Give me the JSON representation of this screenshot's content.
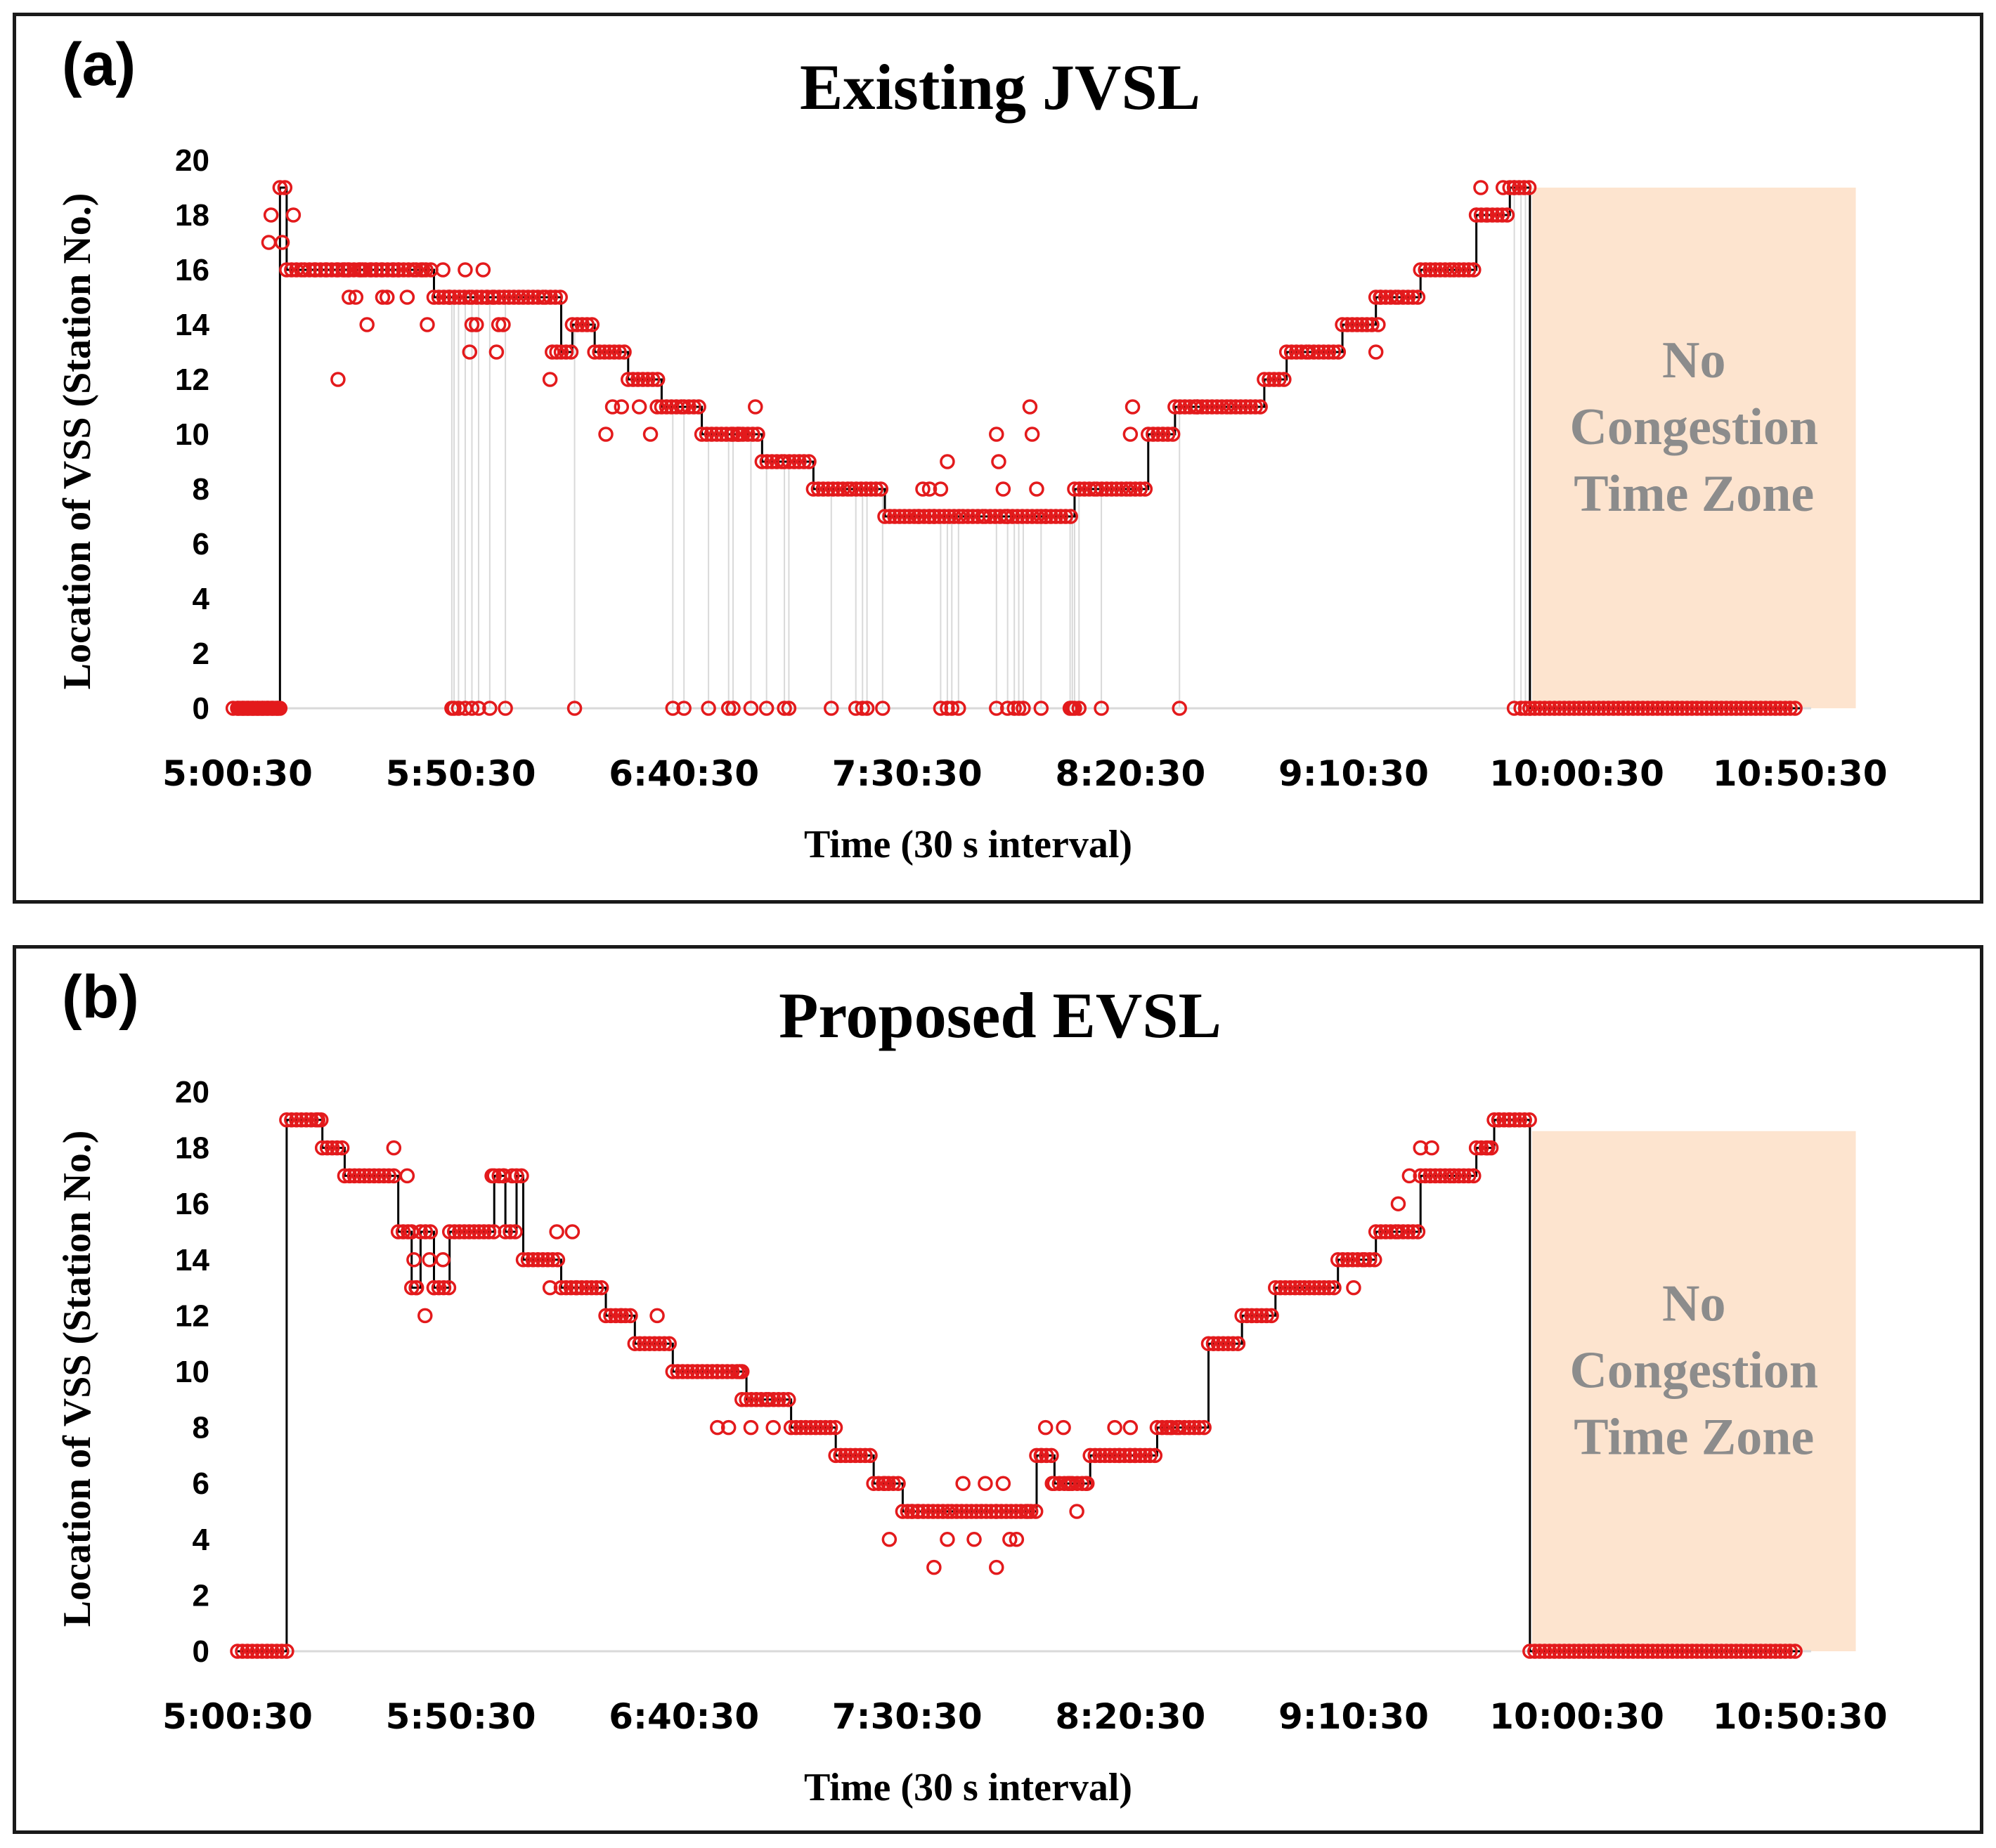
{
  "chart_data": [
    {
      "panel_label": "(a)",
      "title": "Existing JVSL",
      "type": "scatter",
      "xlabel": "Time (30 s interval)",
      "ylabel": "Location of VSS (Station No.)",
      "x_tick_labels": [
        "5:00:30",
        "5:50:30",
        "6:40:30",
        "7:30:30",
        "8:20:30",
        "9:10:30",
        "10:00:30",
        "10:50:30"
      ],
      "x_ticks": [
        0,
        100,
        200,
        300,
        400,
        500,
        600,
        700
      ],
      "xlim": [
        0,
        705
      ],
      "y_ticks": [
        0,
        2,
        4,
        6,
        8,
        10,
        12,
        14,
        16,
        18,
        20
      ],
      "ylim": [
        0,
        20
      ],
      "grid": false,
      "shaded_region": {
        "x": [
          580,
          725
        ],
        "y": [
          0,
          19
        ],
        "text": [
          "No",
          "Congestion",
          "Time Zone"
        ],
        "color": "#fde4cf"
      },
      "series_color": "#e31a1c",
      "line_color": "#000000",
      "drop_line_color": "#d9d9d9",
      "segments": [
        [
          -3,
          19,
          0
        ],
        [
          19,
          22,
          19
        ],
        [
          22,
          30,
          16
        ],
        [
          30,
          35,
          16
        ],
        [
          35,
          40,
          16
        ],
        [
          40,
          45,
          16
        ],
        [
          45,
          50,
          16
        ],
        [
          50,
          55,
          16
        ],
        [
          55,
          60,
          16
        ],
        [
          60,
          65,
          16
        ],
        [
          65,
          70,
          16
        ],
        [
          70,
          80,
          16
        ],
        [
          80,
          88,
          16
        ],
        [
          88,
          95,
          15
        ],
        [
          95,
          105,
          15
        ],
        [
          105,
          112,
          15
        ],
        [
          112,
          115,
          15
        ],
        [
          115,
          128,
          15
        ],
        [
          128,
          138,
          15
        ],
        [
          138,
          145,
          15
        ],
        [
          145,
          150,
          13
        ],
        [
          150,
          160,
          14
        ],
        [
          160,
          175,
          13
        ],
        [
          175,
          190,
          12
        ],
        [
          190,
          200,
          11
        ],
        [
          200,
          208,
          11
        ],
        [
          208,
          222,
          10
        ],
        [
          222,
          235,
          10
        ],
        [
          235,
          245,
          9
        ],
        [
          245,
          258,
          9
        ],
        [
          258,
          275,
          8
        ],
        [
          275,
          290,
          8
        ],
        [
          290,
          310,
          7
        ],
        [
          310,
          325,
          7
        ],
        [
          325,
          335,
          7
        ],
        [
          335,
          345,
          7
        ],
        [
          345,
          360,
          7
        ],
        [
          360,
          375,
          7
        ],
        [
          375,
          385,
          8
        ],
        [
          385,
          400,
          8
        ],
        [
          400,
          408,
          8
        ],
        [
          408,
          420,
          10
        ],
        [
          420,
          430,
          11
        ],
        [
          430,
          445,
          11
        ],
        [
          445,
          460,
          11
        ],
        [
          460,
          470,
          12
        ],
        [
          470,
          480,
          13
        ],
        [
          480,
          495,
          13
        ],
        [
          495,
          510,
          14
        ],
        [
          510,
          520,
          15
        ],
        [
          520,
          530,
          15
        ],
        [
          530,
          545,
          16
        ],
        [
          545,
          555,
          16
        ],
        [
          555,
          560,
          18
        ],
        [
          560,
          570,
          18
        ],
        [
          570,
          572,
          19
        ],
        [
          572,
          579,
          19
        ],
        [
          579,
          700,
          0
        ]
      ],
      "annotation_points": [
        [
          14,
          17
        ],
        [
          15,
          18
        ],
        [
          20,
          17
        ],
        [
          25,
          18
        ],
        [
          48,
          16
        ],
        [
          45,
          12
        ],
        [
          50,
          15
        ],
        [
          53,
          15
        ],
        [
          56,
          16
        ],
        [
          58,
          14
        ],
        [
          62,
          16
        ],
        [
          65,
          15
        ],
        [
          67,
          15
        ],
        [
          72,
          16
        ],
        [
          76,
          15
        ],
        [
          83,
          16
        ],
        [
          85,
          14
        ],
        [
          92,
          16
        ],
        [
          95,
          15
        ],
        [
          102,
          16
        ],
        [
          104,
          13
        ],
        [
          105,
          14
        ],
        [
          107,
          14
        ],
        [
          110,
          16
        ],
        [
          116,
          13
        ],
        [
          117,
          14
        ],
        [
          119,
          14
        ],
        [
          140,
          12
        ],
        [
          141,
          13
        ],
        [
          143,
          13
        ],
        [
          165,
          10
        ],
        [
          168,
          11
        ],
        [
          172,
          11
        ],
        [
          180,
          11
        ],
        [
          185,
          10
        ],
        [
          188,
          11
        ],
        [
          224,
          10
        ],
        [
          225,
          10
        ],
        [
          232,
          11
        ],
        [
          305,
          7
        ],
        [
          307,
          8
        ],
        [
          310,
          8
        ],
        [
          312,
          7
        ],
        [
          315,
          8
        ],
        [
          318,
          9
        ],
        [
          340,
          10
        ],
        [
          341,
          9
        ],
        [
          343,
          8
        ],
        [
          345,
          7
        ],
        [
          355,
          11
        ],
        [
          356,
          10
        ],
        [
          358,
          8
        ],
        [
          362,
          7
        ],
        [
          400,
          10
        ],
        [
          401,
          11
        ],
        [
          430,
          11
        ],
        [
          510,
          13
        ],
        [
          511,
          14
        ],
        [
          512,
          15
        ],
        [
          555,
          18
        ],
        [
          557,
          19
        ],
        [
          567,
          19
        ],
        [
          572,
          19
        ]
      ],
      "zero_points": [
        0,
        1,
        2,
        3,
        4,
        5,
        6,
        7,
        8,
        9,
        10,
        11,
        12,
        13,
        14,
        15,
        16,
        17,
        18,
        19,
        96,
        97,
        99,
        102,
        105,
        108,
        113,
        120,
        151,
        195,
        200,
        211,
        220,
        222,
        230,
        237,
        245,
        247,
        266,
        277,
        280,
        282,
        289,
        315,
        318,
        320,
        323,
        340,
        345,
        348,
        350,
        352,
        360,
        373,
        374,
        375,
        377,
        387,
        422,
        572,
        575,
        577,
        579
      ]
    },
    {
      "panel_label": "(b)",
      "title": "Proposed EVSL",
      "type": "scatter",
      "xlabel": "Time (30 s interval)",
      "ylabel": "Location of VSS (Station No.)",
      "x_tick_labels": [
        "5:00:30",
        "5:50:30",
        "6:40:30",
        "7:30:30",
        "8:20:30",
        "9:10:30",
        "10:00:30",
        "10:50:30"
      ],
      "x_ticks": [
        0,
        100,
        200,
        300,
        400,
        500,
        600,
        700
      ],
      "xlim": [
        0,
        705
      ],
      "y_ticks": [
        0,
        2,
        4,
        6,
        8,
        10,
        12,
        14,
        16,
        18,
        20
      ],
      "ylim": [
        0,
        20
      ],
      "grid": false,
      "shaded_region": {
        "x": [
          580,
          725
        ],
        "y": [
          0,
          18.6
        ],
        "text": [
          "No",
          "Congestion",
          "Time Zone"
        ],
        "color": "#fde4cf"
      },
      "series_color": "#e31a1c",
      "line_color": "#000000",
      "segments": [
        [
          0,
          22,
          0
        ],
        [
          22,
          38,
          19
        ],
        [
          38,
          48,
          18
        ],
        [
          48,
          72,
          17
        ],
        [
          72,
          78,
          15
        ],
        [
          78,
          82,
          13
        ],
        [
          82,
          88,
          15
        ],
        [
          88,
          95,
          13
        ],
        [
          95,
          115,
          15
        ],
        [
          115,
          120,
          17
        ],
        [
          120,
          125,
          15
        ],
        [
          125,
          128,
          17
        ],
        [
          128,
          145,
          14
        ],
        [
          145,
          152,
          13
        ],
        [
          152,
          165,
          13
        ],
        [
          165,
          178,
          12
        ],
        [
          178,
          195,
          11
        ],
        [
          195,
          215,
          10
        ],
        [
          215,
          228,
          10
        ],
        [
          228,
          238,
          9
        ],
        [
          238,
          248,
          9
        ],
        [
          248,
          268,
          8
        ],
        [
          268,
          285,
          7
        ],
        [
          285,
          298,
          6
        ],
        [
          298,
          305,
          5
        ],
        [
          305,
          320,
          5
        ],
        [
          320,
          340,
          5
        ],
        [
          340,
          358,
          5
        ],
        [
          358,
          366,
          7
        ],
        [
          366,
          374,
          6
        ],
        [
          374,
          382,
          6
        ],
        [
          382,
          400,
          7
        ],
        [
          400,
          412,
          7
        ],
        [
          412,
          422,
          8
        ],
        [
          422,
          435,
          8
        ],
        [
          435,
          450,
          11
        ],
        [
          450,
          465,
          12
        ],
        [
          465,
          478,
          13
        ],
        [
          478,
          493,
          13
        ],
        [
          493,
          505,
          14
        ],
        [
          505,
          510,
          14
        ],
        [
          510,
          520,
          15
        ],
        [
          520,
          530,
          15
        ],
        [
          530,
          545,
          17
        ],
        [
          545,
          555,
          17
        ],
        [
          555,
          563,
          18
        ],
        [
          563,
          570,
          19
        ],
        [
          570,
          579,
          19
        ],
        [
          579,
          700,
          0
        ]
      ],
      "annotation_points": [
        [
          36,
          19
        ],
        [
          70,
          18
        ],
        [
          76,
          17
        ],
        [
          78,
          15
        ],
        [
          79,
          14
        ],
        [
          80,
          13
        ],
        [
          84,
          12
        ],
        [
          86,
          14
        ],
        [
          88,
          13
        ],
        [
          92,
          14
        ],
        [
          114,
          17
        ],
        [
          119,
          17
        ],
        [
          123,
          17
        ],
        [
          140,
          13
        ],
        [
          143,
          15
        ],
        [
          150,
          15
        ],
        [
          172,
          12
        ],
        [
          188,
          12
        ],
        [
          215,
          8
        ],
        [
          220,
          8
        ],
        [
          225,
          10
        ],
        [
          226,
          9
        ],
        [
          230,
          8
        ],
        [
          240,
          8
        ],
        [
          290,
          6
        ],
        [
          292,
          4
        ],
        [
          302,
          5
        ],
        [
          312,
          3
        ],
        [
          318,
          4
        ],
        [
          325,
          6
        ],
        [
          330,
          4
        ],
        [
          335,
          6
        ],
        [
          340,
          3
        ],
        [
          343,
          6
        ],
        [
          346,
          4
        ],
        [
          349,
          4
        ],
        [
          354,
          5
        ],
        [
          360,
          7
        ],
        [
          362,
          8
        ],
        [
          365,
          6
        ],
        [
          370,
          8
        ],
        [
          372,
          6
        ],
        [
          376,
          5
        ],
        [
          380,
          6
        ],
        [
          393,
          8
        ],
        [
          395,
          7
        ],
        [
          400,
          8
        ],
        [
          402,
          7
        ],
        [
          418,
          8
        ],
        [
          500,
          13
        ],
        [
          520,
          16
        ],
        [
          525,
          17
        ],
        [
          530,
          18
        ],
        [
          535,
          18
        ],
        [
          560,
          18
        ],
        [
          565,
          19
        ]
      ],
      "zero_points": []
    }
  ]
}
